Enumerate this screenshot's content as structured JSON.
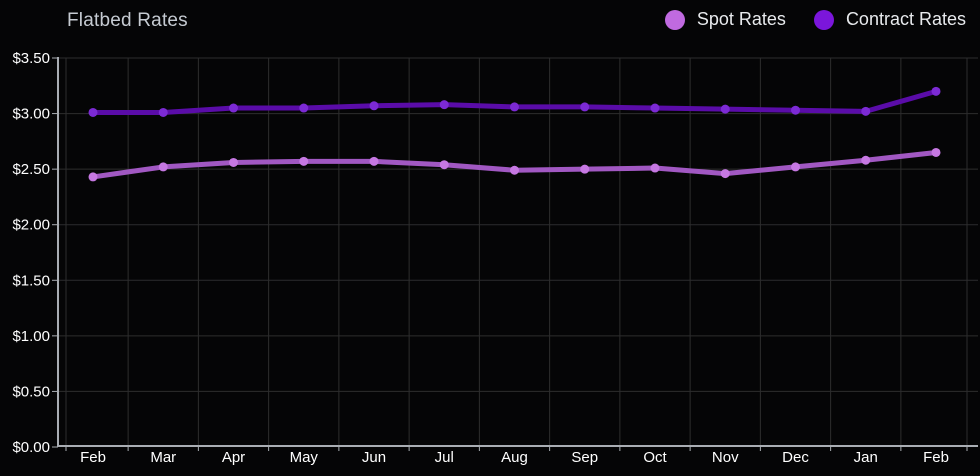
{
  "header": {
    "title": "Flatbed Rates"
  },
  "legend": [
    {
      "label": "Spot Rates",
      "color": "#c06ae0"
    },
    {
      "label": "Contract Rates",
      "color": "#7b16db"
    }
  ],
  "chart_data": {
    "type": "line",
    "title": "Flatbed Rates",
    "categories": [
      "Feb",
      "Mar",
      "Apr",
      "May",
      "Jun",
      "Jul",
      "Aug",
      "Sep",
      "Oct",
      "Nov",
      "Dec",
      "Jan",
      "Feb"
    ],
    "series": [
      {
        "name": "Spot Rates",
        "values": [
          2.43,
          2.52,
          2.56,
          2.57,
          2.57,
          2.54,
          2.49,
          2.5,
          2.51,
          2.46,
          2.52,
          2.58,
          2.65
        ],
        "line_color": "#a158c2",
        "dot_color": "#c678e2"
      },
      {
        "name": "Contract Rates",
        "values": [
          3.01,
          3.01,
          3.05,
          3.05,
          3.07,
          3.08,
          3.06,
          3.06,
          3.05,
          3.04,
          3.03,
          3.02,
          3.2
        ],
        "line_color": "#5a0ca8",
        "dot_color": "#7c2ad4"
      }
    ],
    "xlabel": "",
    "ylabel": "",
    "ylim": [
      0,
      3.5
    ],
    "y_ticks": [
      {
        "label": "$0.00",
        "value": 0.0
      },
      {
        "label": "$0.50",
        "value": 0.5
      },
      {
        "label": "$1.00",
        "value": 1.0
      },
      {
        "label": "$1.50",
        "value": 1.5
      },
      {
        "label": "$2.00",
        "value": 2.0
      },
      {
        "label": "$2.50",
        "value": 2.5
      },
      {
        "label": "$3.00",
        "value": 3.0
      },
      {
        "label": "$3.50",
        "value": 3.5
      }
    ],
    "grid": true,
    "legend_position": "top-right"
  },
  "colors": {
    "background": "#050506",
    "gridline": "#2d2d2e",
    "axis": "#a9adb3",
    "tick_label": "#ffffff",
    "title_text": "#c6cbd2",
    "legend_text": "#e8eaed"
  }
}
